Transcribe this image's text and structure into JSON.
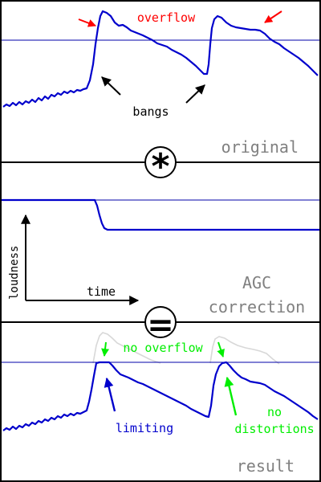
{
  "labels": {
    "overflow": "overflow",
    "bangs": "bangs",
    "original": "original",
    "loudness": "loudness",
    "time": "time",
    "agc_line1": "AGC",
    "agc_line2": "correction",
    "no_overflow": "no overflow",
    "limiting": "limiting",
    "no_line1": "no",
    "distortions": "distortions",
    "result": "result"
  },
  "operators": {
    "convolve": "*",
    "equals": "="
  },
  "colors": {
    "signal": "#0000cc",
    "threshold": "#0000aa",
    "overflow_arrow": "#ff0000",
    "ok_arrow": "#00ee00",
    "ghost": "#d8d8d8",
    "caption": "#808080",
    "black": "#000000"
  }
}
